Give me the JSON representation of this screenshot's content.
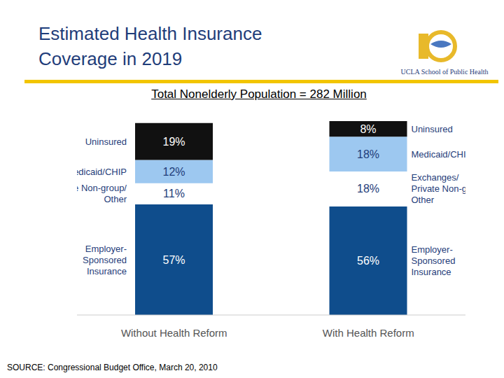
{
  "chart_data": {
    "type": "bar",
    "title": "Estimated Health Insurance Coverage in 2019",
    "subtitle": "Total Nonelderly Population = 282 Million",
    "source": "SOURCE: Congressional Budget Office, March 20, 2010",
    "logo_text": "UCLA School of Public Health",
    "categories": [
      "Without Health Reform",
      "With Health Reform"
    ],
    "stacked": true,
    "data_labels": true,
    "tick_labels": false,
    "grid": false,
    "ylim": [
      0,
      100
    ],
    "series": [
      {
        "name": "Employer-Sponsored Insurance",
        "color": "#0f4d8c",
        "values": [
          57,
          56
        ],
        "value_labels": [
          "57%",
          "56%"
        ],
        "labels": [
          [
            "Employer-",
            "Sponsored",
            "Insurance"
          ],
          [
            "Employer-",
            "Sponsored",
            "Insurance"
          ]
        ]
      },
      {
        "name": "Private Non-group/ Other",
        "color": "#ffffff",
        "values": [
          11,
          18
        ],
        "value_labels": [
          "11%",
          "18%"
        ],
        "labels": [
          [
            "Private Non-group/",
            "Other"
          ],
          [
            "Exchanges/",
            "Private Non-group/",
            "Other"
          ]
        ]
      },
      {
        "name": "Medicaid/CHIP",
        "color": "#9dc8f0",
        "values": [
          12,
          18
        ],
        "value_labels": [
          "12%",
          "18%"
        ],
        "labels": [
          [
            "Medicaid/CHIP"
          ],
          [
            "Medicaid/CHIP"
          ]
        ]
      },
      {
        "name": "Uninsured",
        "color": "#111111",
        "values": [
          19,
          8
        ],
        "value_labels": [
          "19%",
          "8%"
        ],
        "labels": [
          [
            "Uninsured"
          ],
          [
            "Uninsured"
          ]
        ]
      }
    ]
  }
}
